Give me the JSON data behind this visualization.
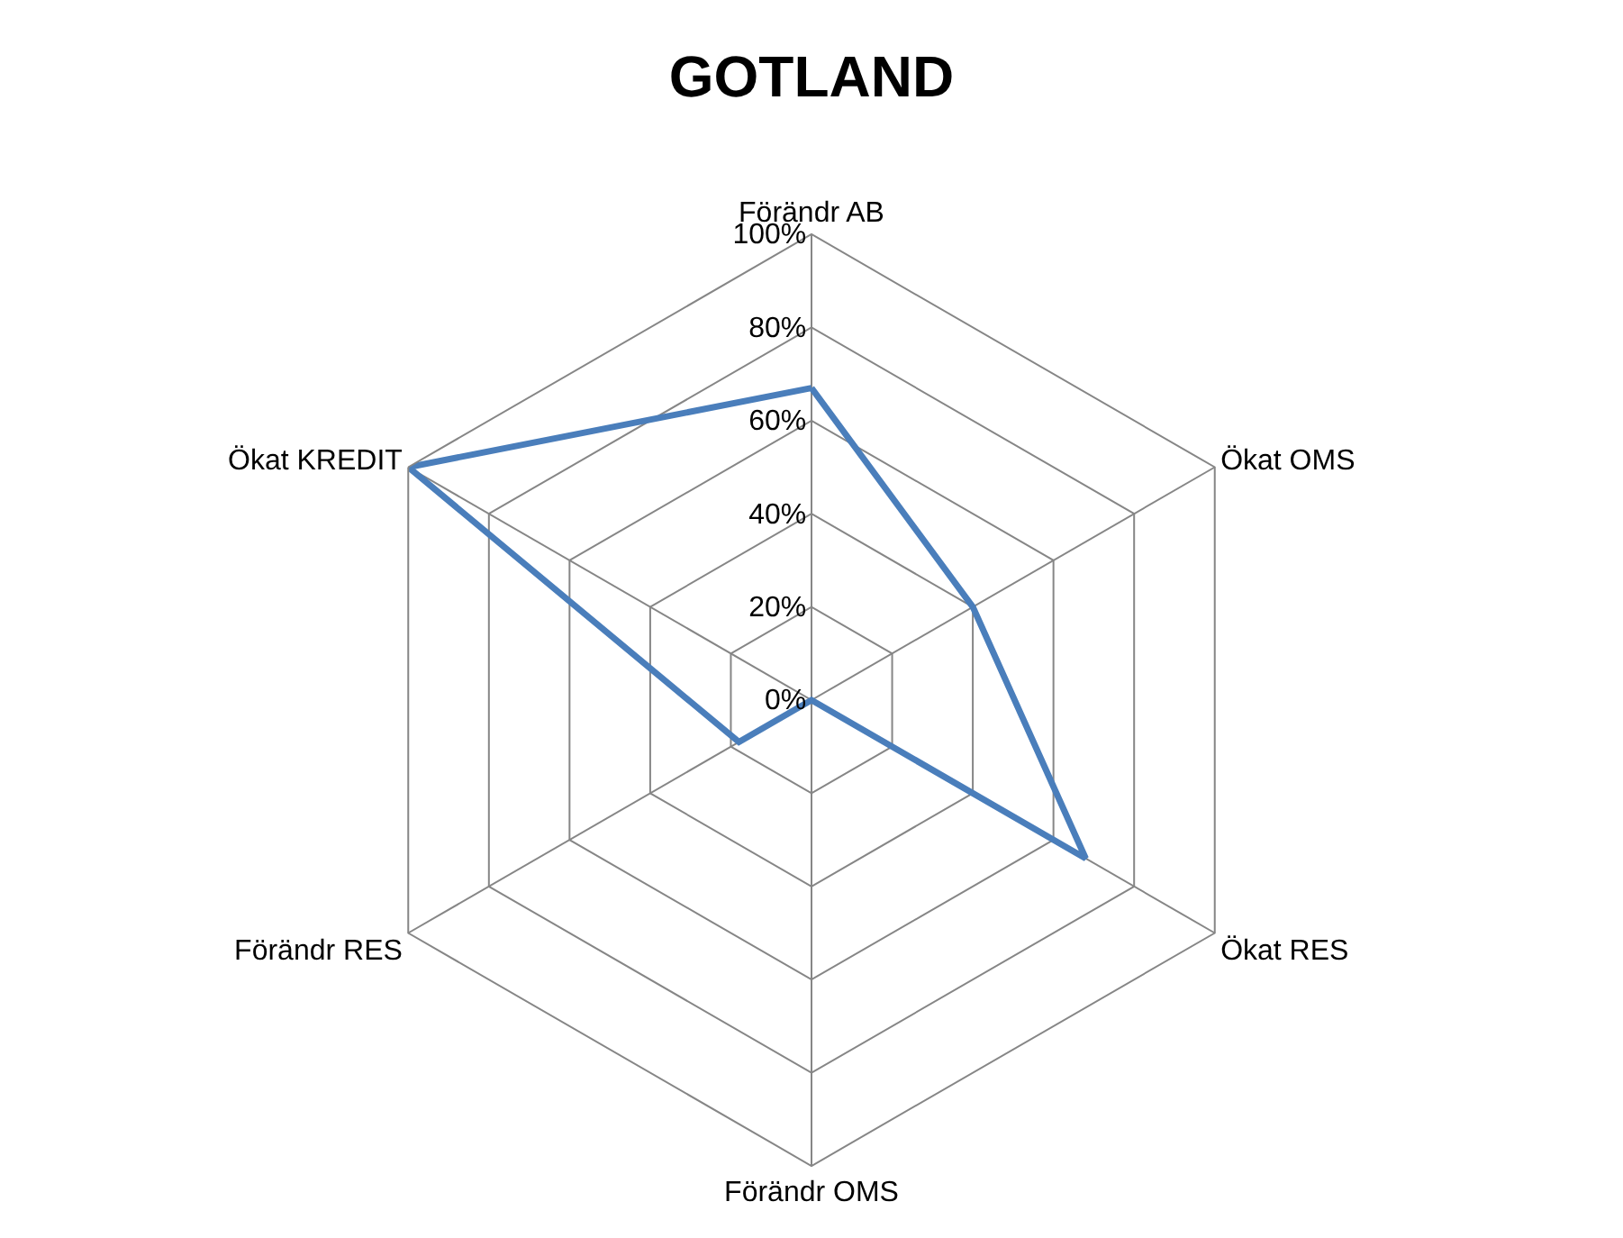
{
  "chart_data": {
    "type": "radar",
    "title": "GOTLAND",
    "categories": [
      "Förändr AB",
      "Ökat OMS",
      "Ökat RES",
      "Förändr OMS",
      "Förändr RES",
      "Ökat KREDIT"
    ],
    "series": [
      {
        "color": "#4a7ebb",
        "values": [
          67,
          40,
          68,
          0,
          18,
          100
        ]
      }
    ],
    "ylim": [
      0,
      100
    ],
    "yticks": [
      {
        "value": 0,
        "label": "0%"
      },
      {
        "value": 20,
        "label": "20%"
      },
      {
        "value": 40,
        "label": "40%"
      },
      {
        "value": 60,
        "label": "60%"
      },
      {
        "value": 80,
        "label": "80%"
      },
      {
        "value": 100,
        "label": "100%"
      }
    ],
    "grid": true,
    "marker": "none",
    "line_style": "solid"
  }
}
